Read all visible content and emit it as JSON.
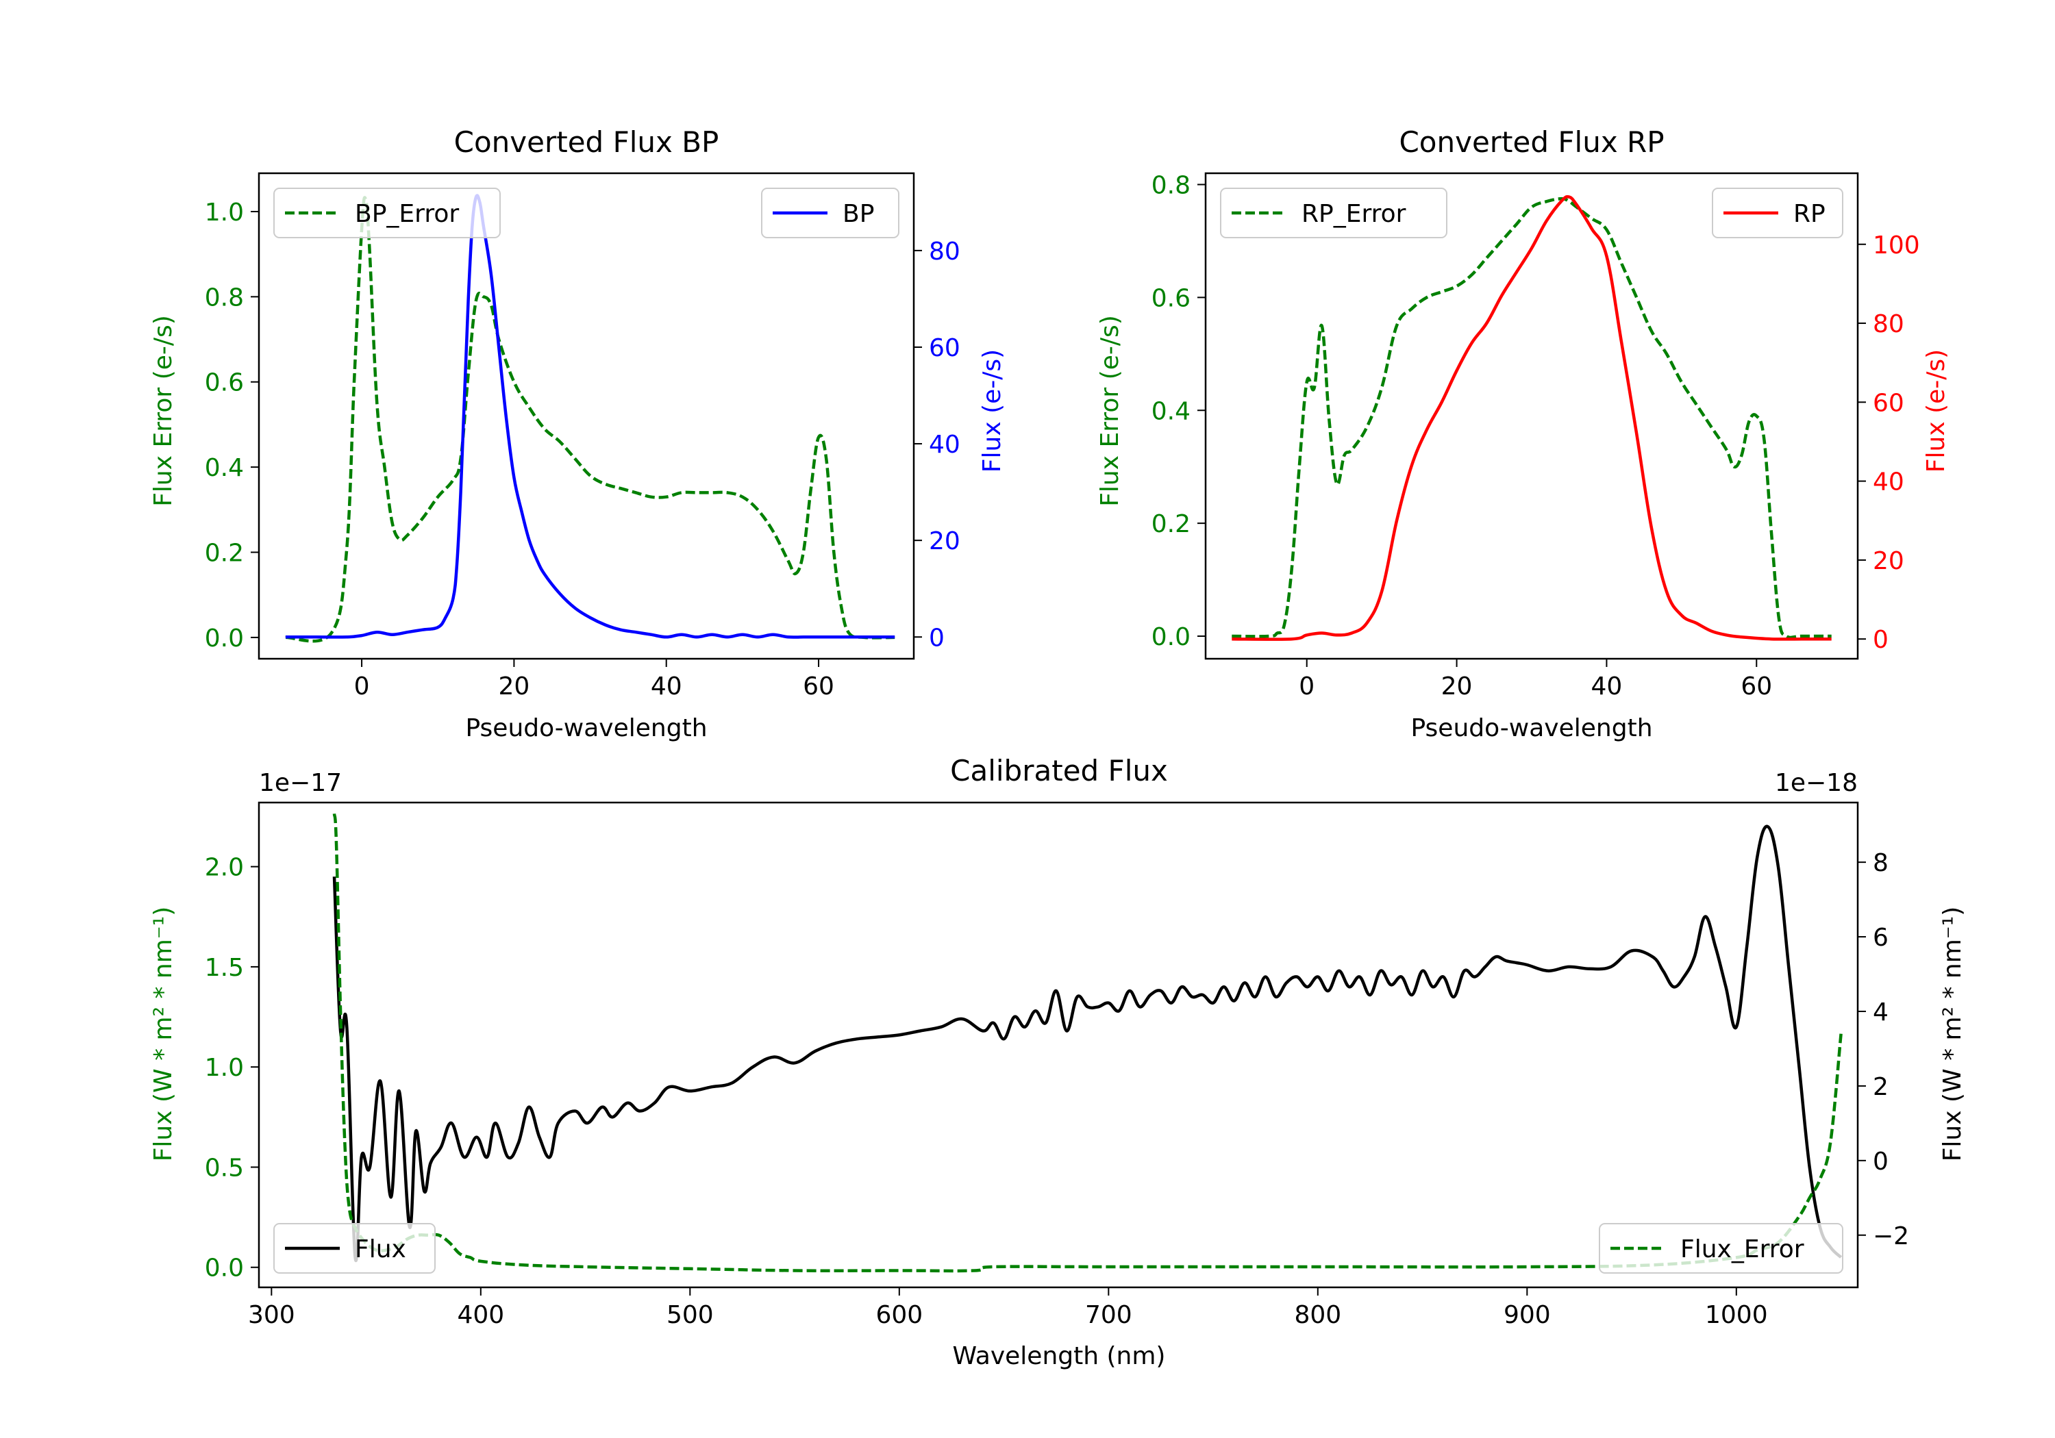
{
  "colors": {
    "bp": "#0000ff",
    "rp": "#ff0000",
    "error": "#008000",
    "flux": "#000000",
    "axis": "#000000",
    "background": "#ffffff"
  },
  "chart_data": [
    {
      "id": "bp",
      "type": "line",
      "title": "Converted Flux BP",
      "xlabel": "Pseudo-wavelength",
      "ylabel_left": "Flux Error (e-/s)",
      "ylabel_right": "Flux (e-/s)",
      "xlim": [
        -13.5,
        72.5
      ],
      "ylim_left": [
        -0.05,
        1.09
      ],
      "ylim_right": [
        -4.5,
        96
      ],
      "xticks": [
        0,
        20,
        40,
        60
      ],
      "yticks_left": [
        0.0,
        0.2,
        0.4,
        0.6,
        0.8,
        1.0
      ],
      "yticks_right": [
        0,
        20,
        40,
        60,
        80
      ],
      "legend_left": {
        "label": "BP_Error",
        "position": "upper left"
      },
      "legend_right": {
        "label": "BP",
        "position": "upper right"
      },
      "series": [
        {
          "name": "BP_Error",
          "axis": "left",
          "style": "dashed",
          "color": "#008000",
          "x": [
            -10,
            -4,
            -2,
            -1,
            0,
            0.5,
            1,
            2,
            3,
            4,
            5,
            6,
            8,
            10,
            12,
            13,
            14,
            15,
            16,
            17,
            18,
            20,
            22,
            24,
            26,
            28,
            30,
            32,
            34,
            36,
            38,
            40,
            42,
            44,
            46,
            48,
            50,
            52,
            54,
            56,
            57,
            58,
            59,
            60,
            61,
            62,
            63,
            64,
            66,
            70
          ],
          "y": [
            0,
            0.01,
            0.2,
            0.6,
            0.96,
            1.03,
            0.92,
            0.55,
            0.4,
            0.27,
            0.23,
            0.24,
            0.28,
            0.33,
            0.37,
            0.42,
            0.62,
            0.79,
            0.8,
            0.78,
            0.7,
            0.6,
            0.54,
            0.49,
            0.46,
            0.42,
            0.38,
            0.36,
            0.35,
            0.34,
            0.33,
            0.33,
            0.34,
            0.34,
            0.34,
            0.34,
            0.33,
            0.3,
            0.25,
            0.18,
            0.15,
            0.2,
            0.35,
            0.47,
            0.42,
            0.2,
            0.07,
            0.01,
            0,
            0
          ]
        },
        {
          "name": "BP",
          "axis": "right",
          "style": "solid",
          "color": "#0000ff",
          "x": [
            -10,
            -6,
            -2,
            0,
            2,
            4,
            6,
            8,
            10,
            11,
            12,
            12.5,
            13,
            13.5,
            14,
            14.5,
            15,
            15.5,
            16,
            17,
            18,
            19,
            20,
            21,
            22,
            23,
            24,
            26,
            28,
            30,
            32,
            34,
            36,
            38,
            40,
            42,
            44,
            46,
            48,
            50,
            52,
            54,
            56,
            58,
            60,
            62,
            64,
            66,
            70
          ],
          "y": [
            0,
            0,
            0,
            0.3,
            1,
            0.5,
            1,
            1.5,
            2,
            4,
            8,
            15,
            30,
            50,
            70,
            85,
            91,
            90,
            85,
            75,
            60,
            45,
            33,
            26,
            20,
            16,
            13,
            9,
            6,
            4,
            2.5,
            1.5,
            1,
            0.5,
            0,
            0.5,
            0,
            0.5,
            0,
            0.5,
            0,
            0.5,
            0,
            0,
            0,
            0,
            0,
            0,
            0
          ]
        }
      ]
    },
    {
      "id": "rp",
      "type": "line",
      "title": "Converted Flux RP",
      "xlabel": "Pseudo-wavelength",
      "ylabel_left": "Flux Error (e-/s)",
      "ylabel_right": "Flux (e-/s)",
      "xlim": [
        -13.5,
        73.5
      ],
      "ylim_left": [
        -0.04,
        0.82
      ],
      "ylim_right": [
        -5,
        118
      ],
      "xticks": [
        0,
        20,
        40,
        60
      ],
      "yticks_left": [
        0.0,
        0.2,
        0.4,
        0.6,
        0.8
      ],
      "yticks_right": [
        0,
        20,
        40,
        60,
        80,
        100
      ],
      "legend_left": {
        "label": "RP_Error",
        "position": "upper left"
      },
      "legend_right": {
        "label": "RP",
        "position": "upper right"
      },
      "series": [
        {
          "name": "RP_Error",
          "axis": "left",
          "style": "dashed",
          "color": "#008000",
          "x": [
            -10,
            -5,
            -4,
            -3,
            -2,
            -1,
            0,
            1,
            2,
            3,
            4,
            5,
            6,
            8,
            10,
            12,
            14,
            16,
            18,
            20,
            22,
            24,
            26,
            28,
            30,
            32,
            34,
            35,
            36,
            38,
            40,
            42,
            44,
            46,
            48,
            50,
            52,
            54,
            56,
            57,
            58,
            59,
            60,
            61,
            62,
            63,
            64,
            66,
            70
          ],
          "y": [
            0,
            0,
            0.005,
            0.02,
            0.12,
            0.3,
            0.45,
            0.44,
            0.55,
            0.38,
            0.27,
            0.32,
            0.33,
            0.37,
            0.44,
            0.55,
            0.58,
            0.6,
            0.61,
            0.62,
            0.64,
            0.67,
            0.7,
            0.73,
            0.76,
            0.77,
            0.775,
            0.77,
            0.76,
            0.74,
            0.72,
            0.66,
            0.6,
            0.54,
            0.5,
            0.45,
            0.41,
            0.37,
            0.33,
            0.3,
            0.32,
            0.38,
            0.39,
            0.35,
            0.18,
            0.03,
            0,
            0,
            0
          ]
        },
        {
          "name": "RP",
          "axis": "right",
          "style": "solid",
          "color": "#ff0000",
          "x": [
            -10,
            -2,
            0,
            2,
            4,
            6,
            8,
            10,
            12,
            14,
            16,
            18,
            20,
            22,
            24,
            26,
            28,
            30,
            32,
            34,
            35,
            36,
            38,
            40,
            42,
            44,
            46,
            48,
            50,
            52,
            54,
            56,
            58,
            62,
            66,
            70
          ],
          "y": [
            0,
            0,
            1,
            1.5,
            1,
            1.5,
            4,
            12,
            30,
            44,
            53,
            60,
            68,
            75,
            80,
            87,
            93,
            99,
            106,
            111,
            112,
            110,
            104,
            97,
            75,
            52,
            28,
            12,
            6,
            4,
            2,
            1,
            0.5,
            0,
            0,
            0
          ]
        }
      ]
    },
    {
      "id": "calibrated",
      "type": "line",
      "title": "Calibrated Flux",
      "xlabel": "Wavelength (nm)",
      "ylabel_left": "Flux (W * m² * nm⁻¹)",
      "ylabel_right": "Flux (W * m² * nm⁻¹)",
      "offset_left": "1e−17",
      "offset_right": "1e−18",
      "xlim": [
        294,
        1058
      ],
      "ylim_left": [
        -0.1,
        2.32
      ],
      "ylim_right": [
        -3.4,
        9.6
      ],
      "xticks": [
        300,
        400,
        500,
        600,
        700,
        800,
        900,
        1000
      ],
      "yticks_left": [
        0.0,
        0.5,
        1.0,
        1.5,
        2.0
      ],
      "yticks_left_labels": [
        "0.0",
        "0.5",
        "1.0",
        "1.5",
        "2.0"
      ],
      "yticks_right": [
        -2,
        0,
        2,
        4,
        6,
        8
      ],
      "yticks_right_labels": [
        "−2",
        "0",
        "2",
        "4",
        "6",
        "8"
      ],
      "legend_left": {
        "label": "Flux",
        "position": "lower left"
      },
      "legend_right": {
        "label": "Flux_Error",
        "position": "lower right"
      },
      "series": [
        {
          "name": "Flux",
          "axis": "left",
          "style": "solid",
          "color": "#000000",
          "x": [
            330,
            333,
            336,
            340,
            343,
            347,
            352,
            357,
            361,
            366,
            369,
            373,
            376,
            381,
            386,
            392,
            398,
            403,
            407,
            413,
            418,
            423,
            428,
            433,
            437,
            445,
            451,
            458,
            463,
            470,
            476,
            483,
            490,
            500,
            510,
            520,
            530,
            540,
            550,
            560,
            570,
            580,
            590,
            600,
            610,
            620,
            630,
            640,
            645,
            650,
            655,
            660,
            665,
            670,
            675,
            680,
            685,
            690,
            695,
            700,
            705,
            710,
            715,
            720,
            725,
            730,
            735,
            740,
            745,
            750,
            755,
            760,
            765,
            770,
            775,
            780,
            785,
            790,
            795,
            800,
            805,
            810,
            815,
            820,
            825,
            830,
            835,
            840,
            845,
            850,
            855,
            860,
            865,
            870,
            875,
            880,
            885,
            890,
            895,
            900,
            910,
            920,
            930,
            940,
            950,
            960,
            965,
            970,
            975,
            980,
            985,
            990,
            995,
            1000,
            1005,
            1010,
            1015,
            1020,
            1025,
            1030,
            1035,
            1040,
            1045,
            1050
          ],
          "y": [
            1.95,
            1.18,
            1.2,
            0.05,
            0.55,
            0.5,
            0.93,
            0.35,
            0.88,
            0.2,
            0.68,
            0.38,
            0.52,
            0.6,
            0.72,
            0.55,
            0.65,
            0.55,
            0.72,
            0.55,
            0.62,
            0.8,
            0.65,
            0.55,
            0.72,
            0.78,
            0.72,
            0.8,
            0.75,
            0.82,
            0.78,
            0.82,
            0.9,
            0.88,
            0.9,
            0.92,
            1.0,
            1.05,
            1.02,
            1.08,
            1.12,
            1.14,
            1.15,
            1.16,
            1.18,
            1.2,
            1.24,
            1.18,
            1.22,
            1.14,
            1.25,
            1.2,
            1.28,
            1.22,
            1.38,
            1.18,
            1.35,
            1.3,
            1.3,
            1.32,
            1.28,
            1.38,
            1.3,
            1.36,
            1.38,
            1.32,
            1.4,
            1.35,
            1.36,
            1.32,
            1.4,
            1.33,
            1.42,
            1.35,
            1.45,
            1.35,
            1.42,
            1.45,
            1.4,
            1.45,
            1.38,
            1.48,
            1.4,
            1.45,
            1.36,
            1.48,
            1.41,
            1.45,
            1.36,
            1.48,
            1.4,
            1.45,
            1.35,
            1.48,
            1.45,
            1.5,
            1.55,
            1.53,
            1.52,
            1.51,
            1.48,
            1.5,
            1.49,
            1.5,
            1.58,
            1.55,
            1.48,
            1.4,
            1.45,
            1.55,
            1.75,
            1.6,
            1.4,
            1.2,
            1.6,
            2.05,
            2.2,
            2.0,
            1.5,
            1.0,
            0.5,
            0.2,
            0.1,
            0.05
          ]
        },
        {
          "name": "Flux_Error",
          "axis": "right",
          "style": "dashed",
          "color": "#008000",
          "x": [
            330,
            331,
            333,
            335,
            337,
            340,
            345,
            350,
            355,
            360,
            365,
            370,
            375,
            380,
            385,
            390,
            395,
            400,
            420,
            450,
            500,
            550,
            600,
            636,
            645,
            700,
            800,
            900,
            960,
            1000,
            1010,
            1020,
            1030,
            1035,
            1040,
            1045,
            1050
          ],
          "y": [
            9.3,
            8.5,
            4,
            0.5,
            -1.2,
            -1.8,
            -2.2,
            -2.4,
            -2.4,
            -2.3,
            -2.1,
            -2.0,
            -2.0,
            -2.0,
            -2.2,
            -2.5,
            -2.6,
            -2.7,
            -2.8,
            -2.85,
            -2.9,
            -2.95,
            -2.95,
            -2.95,
            -2.85,
            -2.85,
            -2.85,
            -2.85,
            -2.8,
            -2.6,
            -2.4,
            -2.2,
            -1.5,
            -1.0,
            -0.5,
            0.5,
            3.4
          ]
        }
      ]
    }
  ]
}
